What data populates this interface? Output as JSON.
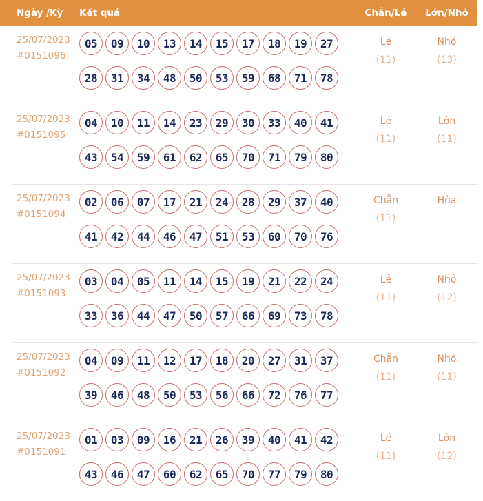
{
  "header": {
    "date_label": "Ngày /Kỳ",
    "result_label": "Kết quả",
    "parity_label": "Chẵn/Lẻ",
    "size_label": "Lớn/Nhỏ"
  },
  "colors": {
    "header_bg": "#e0903e",
    "header_text": "#ffffff",
    "date_text": "#e2a373",
    "ball_border": "#c96e6c",
    "ball_text": "#1c2a5a",
    "value_text": "#da9165",
    "count_text": "#e8b495",
    "divider": "#e5e5e5"
  },
  "rows": [
    {
      "date": "25/07/2023",
      "id": "#0151096",
      "numbers_line1": [
        "05",
        "09",
        "10",
        "13",
        "14",
        "15",
        "17",
        "18",
        "19",
        "27"
      ],
      "numbers_line2": [
        "28",
        "31",
        "34",
        "48",
        "50",
        "53",
        "59",
        "68",
        "71",
        "78"
      ],
      "parity": {
        "value": "Lẻ",
        "count": "(11)"
      },
      "size": {
        "value": "Nhỏ",
        "count": "(13)"
      }
    },
    {
      "date": "25/07/2023",
      "id": "#0151095",
      "numbers_line1": [
        "04",
        "10",
        "11",
        "14",
        "23",
        "29",
        "30",
        "33",
        "40",
        "41"
      ],
      "numbers_line2": [
        "43",
        "54",
        "59",
        "61",
        "62",
        "65",
        "70",
        "71",
        "79",
        "80"
      ],
      "parity": {
        "value": "Lẻ",
        "count": "(11)"
      },
      "size": {
        "value": "Lớn",
        "count": "(11)"
      }
    },
    {
      "date": "25/07/2023",
      "id": "#0151094",
      "numbers_line1": [
        "02",
        "06",
        "07",
        "17",
        "21",
        "24",
        "28",
        "29",
        "37",
        "40"
      ],
      "numbers_line2": [
        "41",
        "42",
        "44",
        "46",
        "47",
        "51",
        "53",
        "60",
        "70",
        "76"
      ],
      "parity": {
        "value": "Chẵn",
        "count": "(11)"
      },
      "size": {
        "value": "Hòa",
        "count": ""
      }
    },
    {
      "date": "25/07/2023",
      "id": "#0151093",
      "numbers_line1": [
        "03",
        "04",
        "05",
        "11",
        "14",
        "15",
        "19",
        "21",
        "22",
        "24"
      ],
      "numbers_line2": [
        "33",
        "36",
        "44",
        "47",
        "50",
        "57",
        "66",
        "69",
        "73",
        "78"
      ],
      "parity": {
        "value": "Lẻ",
        "count": "(11)"
      },
      "size": {
        "value": "Nhỏ",
        "count": "(12)"
      }
    },
    {
      "date": "25/07/2023",
      "id": "#0151092",
      "numbers_line1": [
        "04",
        "09",
        "11",
        "12",
        "17",
        "18",
        "20",
        "27",
        "31",
        "37"
      ],
      "numbers_line2": [
        "39",
        "46",
        "48",
        "50",
        "53",
        "56",
        "66",
        "72",
        "76",
        "77"
      ],
      "parity": {
        "value": "Chẵn",
        "count": "(11)"
      },
      "size": {
        "value": "Nhỏ",
        "count": "(11)"
      }
    },
    {
      "date": "25/07/2023",
      "id": "#0151091",
      "numbers_line1": [
        "01",
        "03",
        "09",
        "16",
        "21",
        "26",
        "39",
        "40",
        "41",
        "42"
      ],
      "numbers_line2": [
        "43",
        "46",
        "47",
        "60",
        "62",
        "65",
        "70",
        "77",
        "79",
        "80"
      ],
      "parity": {
        "value": "Lẻ",
        "count": "(11)"
      },
      "size": {
        "value": "Lớn",
        "count": "(12)"
      }
    }
  ]
}
